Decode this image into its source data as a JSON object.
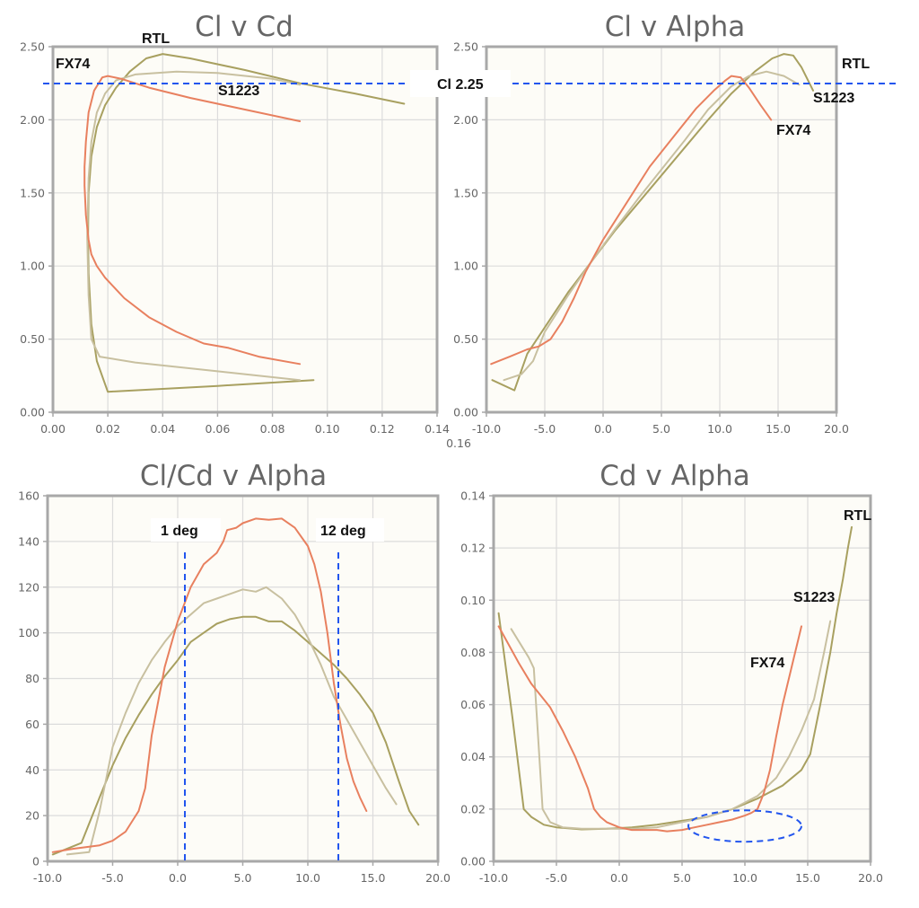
{
  "series_colors": {
    "FX74": "#e8805f",
    "S1223": "#c8c0a0",
    "RTL": "#a8a060"
  },
  "reference_color": "#2255ee",
  "chart_data": [
    {
      "id": "cl-v-cd",
      "type": "line",
      "title": "Cl v Cd",
      "xlabel": "",
      "ylabel": "",
      "xlim": [
        0,
        0.14
      ],
      "ylim": [
        0,
        2.5
      ],
      "xticks": [
        "0.00",
        "0.02",
        "0.04",
        "0.06",
        "0.08",
        "0.10",
        "0.12",
        "0.14"
      ],
      "yticks": [
        "0.00",
        "0.50",
        "1.00",
        "1.50",
        "2.00",
        "2.50"
      ],
      "grid": true,
      "series": [
        {
          "name": "FX74",
          "x": [
            0.09,
            0.075,
            0.064,
            0.055,
            0.045,
            0.035,
            0.026,
            0.019,
            0.016,
            0.014,
            0.013,
            0.012,
            0.0115,
            0.0115,
            0.012,
            0.013,
            0.015,
            0.018,
            0.02,
            0.025,
            0.035,
            0.05,
            0.07,
            0.09
          ],
          "y": [
            0.33,
            0.38,
            0.44,
            0.47,
            0.55,
            0.65,
            0.78,
            0.92,
            1.0,
            1.08,
            1.18,
            1.35,
            1.55,
            1.68,
            1.85,
            2.05,
            2.2,
            2.29,
            2.3,
            2.28,
            2.22,
            2.15,
            2.07,
            1.99
          ]
        },
        {
          "name": "S1223",
          "x": [
            0.09,
            0.06,
            0.03,
            0.017,
            0.014,
            0.013,
            0.0125,
            0.013,
            0.014,
            0.016,
            0.019,
            0.023,
            0.03,
            0.045,
            0.06,
            0.08,
            0.09
          ],
          "y": [
            0.22,
            0.28,
            0.34,
            0.38,
            0.5,
            0.8,
            1.2,
            1.6,
            1.85,
            2.05,
            2.18,
            2.27,
            2.31,
            2.33,
            2.32,
            2.28,
            2.24
          ]
        },
        {
          "name": "RTL",
          "x": [
            0.095,
            0.06,
            0.02,
            0.016,
            0.014,
            0.013,
            0.0128,
            0.013,
            0.014,
            0.016,
            0.019,
            0.023,
            0.028,
            0.034,
            0.04,
            0.05,
            0.07,
            0.09,
            0.11,
            0.128
          ],
          "y": [
            0.22,
            0.18,
            0.14,
            0.35,
            0.6,
            0.95,
            1.2,
            1.5,
            1.75,
            1.95,
            2.1,
            2.22,
            2.33,
            2.42,
            2.45,
            2.42,
            2.34,
            2.25,
            2.18,
            2.11
          ]
        }
      ],
      "annotations": {
        "series_labels": [
          {
            "text": "FX74",
            "series": "FX74"
          },
          {
            "text": "RTL",
            "series": "RTL"
          },
          {
            "text": "S1223",
            "series": "S1223"
          }
        ],
        "hline": {
          "y": 2.25,
          "label": "Cl 2.25"
        }
      }
    },
    {
      "id": "cl-v-alpha",
      "type": "line",
      "title": "Cl v Alpha",
      "xlabel": "",
      "ylabel": "",
      "xlim": [
        -10,
        20
      ],
      "ylim": [
        0,
        2.5
      ],
      "xticks": [
        "-10.0",
        "-5.0",
        "0.0",
        "5.0",
        "10.0",
        "15.0",
        "20.0"
      ],
      "yticks": [
        "0.00",
        "0.50",
        "1.00",
        "1.50",
        "2.00",
        "2.50"
      ],
      "overlap_tick_text": "0.16",
      "grid": true,
      "series": [
        {
          "name": "FX74",
          "x": [
            -9.6,
            -8,
            -6.5,
            -5.5,
            -4.5,
            -3.5,
            -2.5,
            -1.5,
            0,
            2,
            4,
            6,
            8,
            9.5,
            10.5,
            11,
            11.8,
            12.5,
            13.5,
            14.4
          ],
          "y": [
            0.33,
            0.38,
            0.43,
            0.45,
            0.5,
            0.62,
            0.78,
            0.96,
            1.18,
            1.43,
            1.68,
            1.88,
            2.08,
            2.2,
            2.27,
            2.3,
            2.29,
            2.22,
            2.1,
            2.0
          ]
        },
        {
          "name": "S1223",
          "x": [
            -8.5,
            -7,
            -6,
            -5,
            -3,
            -1,
            1,
            3,
            5,
            7,
            9,
            11,
            12.5,
            14,
            15.5,
            16.8
          ],
          "y": [
            0.22,
            0.26,
            0.35,
            0.55,
            0.8,
            1.03,
            1.25,
            1.46,
            1.66,
            1.86,
            2.07,
            2.23,
            2.3,
            2.33,
            2.3,
            2.24
          ]
        },
        {
          "name": "RTL",
          "x": [
            -9.5,
            -7.6,
            -6.5,
            -5,
            -3,
            -1,
            1,
            3,
            5,
            7,
            9,
            11,
            13,
            14.5,
            15.5,
            16.3,
            17,
            18
          ],
          "y": [
            0.22,
            0.15,
            0.4,
            0.58,
            0.82,
            1.03,
            1.24,
            1.43,
            1.62,
            1.81,
            2.0,
            2.18,
            2.33,
            2.42,
            2.45,
            2.44,
            2.36,
            2.2
          ]
        }
      ],
      "annotations": {
        "series_labels": [
          {
            "text": "RTL",
            "series": "RTL"
          },
          {
            "text": "S1223",
            "series": "S1223"
          },
          {
            "text": "FX74",
            "series": "FX74"
          }
        ],
        "hline": {
          "y": 2.25
        }
      }
    },
    {
      "id": "clcd-v-alpha",
      "type": "line",
      "title": "Cl/Cd v Alpha",
      "xlabel": "",
      "ylabel": "",
      "xlim": [
        -10,
        20
      ],
      "ylim": [
        0,
        160
      ],
      "xticks": [
        "-10.0",
        "-5.0",
        "0.0",
        "5.0",
        "10.0",
        "15.0",
        "20.0"
      ],
      "yticks": [
        "0",
        "20",
        "40",
        "60",
        "80",
        "100",
        "120",
        "140",
        "160"
      ],
      "grid": true,
      "series": [
        {
          "name": "FX74",
          "x": [
            -9.6,
            -8,
            -6,
            -5,
            -4,
            -3,
            -2.5,
            -2,
            -1.5,
            -1,
            0,
            1,
            2,
            3,
            3.5,
            3.8,
            4.5,
            5,
            6,
            7,
            8,
            9,
            10,
            10.5,
            11,
            11.5,
            12,
            12.5,
            13,
            13.5,
            14,
            14.5
          ],
          "y": [
            4,
            5.5,
            7,
            9,
            13,
            22,
            32,
            55,
            70,
            85,
            105,
            120,
            130,
            135,
            140,
            145,
            146,
            148,
            150,
            149.5,
            150,
            146,
            138,
            130,
            118,
            100,
            78,
            60,
            45,
            35,
            28,
            22
          ]
        },
        {
          "name": "S1223",
          "x": [
            -8.5,
            -6.8,
            -6,
            -5,
            -4,
            -3,
            -2,
            -1,
            0,
            1,
            2,
            3,
            4,
            5,
            6,
            6.8,
            8,
            9,
            10,
            11,
            12,
            13,
            14,
            15,
            16,
            16.8
          ],
          "y": [
            3,
            4,
            22,
            50,
            65,
            78,
            88,
            96,
            103,
            108,
            113,
            115,
            117,
            119,
            118,
            120,
            115,
            108,
            98,
            86,
            72,
            62,
            52,
            42,
            32,
            25
          ]
        },
        {
          "name": "RTL",
          "x": [
            -9.6,
            -7.4,
            -6,
            -5,
            -4,
            -3,
            -2,
            -1,
            0,
            1,
            2,
            3,
            4,
            5,
            6,
            7,
            8,
            9,
            10,
            11,
            12,
            13,
            14,
            15,
            16,
            17,
            17.8,
            18.5
          ],
          "y": [
            3,
            8,
            28,
            42,
            54,
            64,
            73,
            81,
            88,
            96,
            100,
            104,
            106,
            107,
            107,
            105,
            105,
            101,
            96,
            91,
            86,
            80,
            73,
            65,
            52,
            35,
            22,
            16
          ]
        }
      ],
      "annotations": {
        "vlines": [
          {
            "x": 0.6,
            "label": "1 deg"
          },
          {
            "x": 12.4,
            "label": "12 deg"
          }
        ]
      }
    },
    {
      "id": "cd-v-alpha",
      "type": "line",
      "title": "Cd v Alpha",
      "xlabel": "",
      "ylabel": "",
      "xlim": [
        -10,
        20
      ],
      "ylim": [
        0,
        0.14
      ],
      "xticks": [
        "-10.0",
        "-5.0",
        "0.0",
        "5.0",
        "10.0",
        "15.0",
        "20.0"
      ],
      "yticks": [
        "0.00",
        "0.02",
        "0.04",
        "0.06",
        "0.08",
        "0.10",
        "0.12",
        "0.14"
      ],
      "grid": true,
      "series": [
        {
          "name": "FX74",
          "x": [
            -9.6,
            -8,
            -7,
            -6,
            -5.5,
            -4.5,
            -3.5,
            -2.5,
            -2,
            -1.5,
            -1,
            0,
            1,
            2,
            3,
            3.8,
            5,
            6,
            7,
            8,
            9,
            10,
            10.5,
            11,
            11.5,
            12,
            12.5,
            13,
            13.5,
            14,
            14.5
          ],
          "y": [
            0.09,
            0.076,
            0.068,
            0.062,
            0.059,
            0.05,
            0.04,
            0.028,
            0.02,
            0.017,
            0.015,
            0.013,
            0.012,
            0.012,
            0.012,
            0.0115,
            0.012,
            0.013,
            0.014,
            0.015,
            0.016,
            0.0175,
            0.0185,
            0.02,
            0.026,
            0.035,
            0.048,
            0.06,
            0.07,
            0.08,
            0.09
          ]
        },
        {
          "name": "S1223",
          "x": [
            -8.6,
            -7.2,
            -6.8,
            -6.1,
            -5.5,
            -4.5,
            -3,
            -1,
            1,
            3,
            5,
            7,
            9,
            11,
            12.5,
            13.5,
            14.5,
            15.5,
            16.3,
            16.8
          ],
          "y": [
            0.089,
            0.078,
            0.074,
            0.02,
            0.015,
            0.013,
            0.0125,
            0.0125,
            0.0125,
            0.013,
            0.015,
            0.017,
            0.02,
            0.025,
            0.032,
            0.04,
            0.05,
            0.062,
            0.08,
            0.092
          ]
        },
        {
          "name": "RTL",
          "x": [
            -9.6,
            -8.5,
            -7.6,
            -7,
            -6,
            -5,
            -3,
            -1,
            1,
            3,
            5,
            7,
            9,
            11,
            13,
            14.5,
            15.2,
            16,
            16.8,
            17.3,
            17.8,
            18.2,
            18.5
          ],
          "y": [
            0.095,
            0.055,
            0.02,
            0.017,
            0.014,
            0.013,
            0.0122,
            0.0125,
            0.013,
            0.014,
            0.0155,
            0.017,
            0.02,
            0.024,
            0.029,
            0.035,
            0.041,
            0.06,
            0.08,
            0.095,
            0.108,
            0.12,
            0.128
          ]
        }
      ],
      "annotations": {
        "series_labels": [
          {
            "text": "RTL",
            "series": "RTL"
          },
          {
            "text": "S1223",
            "series": "S1223"
          },
          {
            "text": "FX74",
            "series": "FX74"
          }
        ],
        "ellipse": {
          "cx": 10,
          "cy": 0.0135,
          "rx": 4.5,
          "ry": 0.006
        }
      }
    }
  ]
}
